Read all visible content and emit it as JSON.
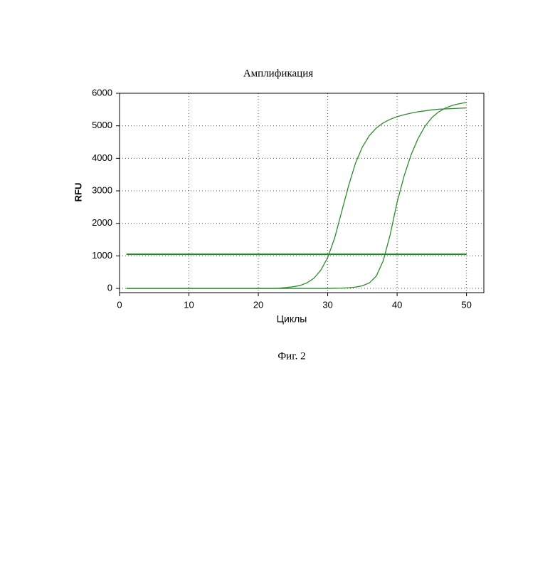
{
  "chart_data": {
    "type": "line",
    "title": "Амплификация",
    "xlabel": "Циклы",
    "ylabel": "RFU",
    "x": [
      1,
      2,
      3,
      4,
      5,
      6,
      7,
      8,
      9,
      10,
      11,
      12,
      13,
      14,
      15,
      16,
      17,
      18,
      19,
      20,
      21,
      22,
      23,
      24,
      25,
      26,
      27,
      28,
      29,
      30,
      31,
      32,
      33,
      34,
      35,
      36,
      37,
      38,
      39,
      40,
      41,
      42,
      43,
      44,
      45,
      46,
      47,
      48,
      49,
      50
    ],
    "series": [
      {
        "color": "#2f8a2f",
        "values": [
          0,
          0,
          0,
          0,
          0,
          0,
          0,
          0,
          0,
          0,
          0,
          0,
          0,
          0,
          0,
          0,
          0,
          0,
          0,
          0,
          0,
          0,
          10,
          25,
          50,
          90,
          170,
          310,
          560,
          950,
          1550,
          2350,
          3150,
          3850,
          4350,
          4700,
          4930,
          5090,
          5200,
          5280,
          5340,
          5390,
          5430,
          5460,
          5490,
          5510,
          5520,
          5530,
          5540,
          5550
        ]
      },
      {
        "color": "#2f8a2f",
        "values": [
          0,
          0,
          0,
          0,
          0,
          0,
          0,
          0,
          0,
          0,
          0,
          0,
          0,
          0,
          0,
          0,
          0,
          0,
          0,
          0,
          0,
          0,
          0,
          0,
          0,
          0,
          0,
          0,
          0,
          0,
          5,
          10,
          20,
          40,
          80,
          170,
          380,
          850,
          1650,
          2650,
          3450,
          4100,
          4600,
          4980,
          5250,
          5430,
          5550,
          5630,
          5680,
          5720
        ]
      }
    ],
    "threshold": 1050,
    "threshold_color": "#1f8a1f",
    "xlim": [
      0,
      52.5
    ],
    "ylim": [
      -130,
      6000
    ],
    "xticks": [
      0,
      10,
      20,
      30,
      40,
      50
    ],
    "yticks": [
      0,
      1000,
      2000,
      3000,
      4000,
      5000,
      6000
    ],
    "grid": true
  },
  "caption": "Фиг. 2"
}
